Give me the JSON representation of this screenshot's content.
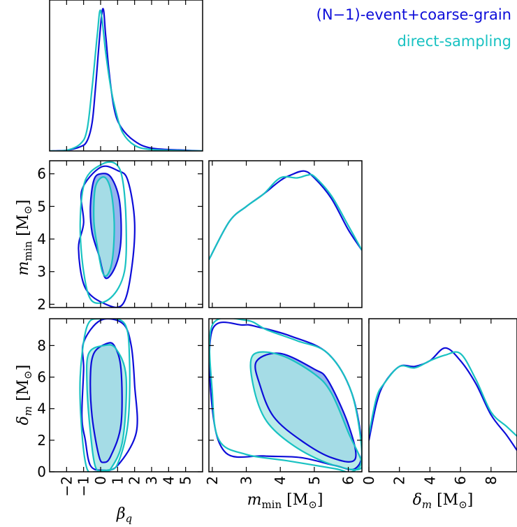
{
  "chart_data": {
    "type": "corner",
    "parameters": [
      {
        "key": "beta_q",
        "label": "β_q",
        "range": [
          -3,
          6
        ],
        "ticks": [
          -2,
          -1,
          0,
          1,
          2,
          3,
          4,
          5
        ],
        "tick_labels": [
          "−2",
          "−1",
          "0",
          "1",
          "2",
          "3",
          "4",
          "5"
        ]
      },
      {
        "key": "m_min",
        "label": "m_min [M_⊙]",
        "range": [
          1.9,
          6.4
        ],
        "ticks": [
          2,
          3,
          4,
          5,
          6
        ],
        "tick_labels": [
          "2",
          "3",
          "4",
          "5",
          "6"
        ]
      },
      {
        "key": "delta_m",
        "label": "δ_m [M_⊙]",
        "range": [
          0,
          9.7
        ],
        "ticks": [
          0,
          2,
          4,
          6,
          8
        ],
        "tick_labels": [
          "0",
          "2",
          "4",
          "6",
          "8"
        ]
      }
    ],
    "legend": {
      "placement": "top-right",
      "entries": [
        {
          "name": "(N−1)-event+coarse-grain",
          "color": "#0d0dd9"
        },
        {
          "name": "direct-sampling",
          "color": "#19c2c2"
        }
      ]
    },
    "series": [
      {
        "name": "(N−1)-event+coarse-grain",
        "color": "#0d0dd9",
        "marginals": {
          "beta_q": {
            "x": [
              -3,
              -2,
              -1.2,
              -0.8,
              -0.5,
              -0.3,
              0.1,
              0.3,
              0.5,
              0.8,
              1.2,
              2.0,
              3.0,
              5.0,
              6.0
            ],
            "y": [
              0,
              0.005,
              0.03,
              0.07,
              0.2,
              0.45,
              1.0,
              0.82,
              0.56,
              0.3,
              0.17,
              0.07,
              0.02,
              0.005,
              0
            ]
          },
          "m_min": {
            "x": [
              1.9,
              2.5,
              3.0,
              3.5,
              4.0,
              4.3,
              4.7,
              5.0,
              5.5,
              6.0,
              6.4
            ],
            "y": [
              0.35,
              0.63,
              0.74,
              0.83,
              0.93,
              0.97,
              1.0,
              0.95,
              0.8,
              0.57,
              0.42
            ]
          },
          "delta_m": {
            "x": [
              0,
              0.5,
              1.0,
              2.0,
              3.0,
              4.0,
              5.0,
              6.0,
              7.0,
              8.0,
              9.0,
              9.7
            ],
            "y": [
              0.22,
              0.48,
              0.62,
              0.74,
              0.74,
              0.78,
              0.87,
              0.78,
              0.62,
              0.4,
              0.26,
              0.15
            ]
          }
        },
        "contours_68": {
          "mmin_vs_betaq": {
            "x": [
              0.0,
              -0.4,
              -0.6,
              -0.5,
              -0.1,
              0.3,
              0.9,
              1.2,
              1.1,
              0.6
            ],
            "y": [
              6.0,
              5.8,
              5.0,
              4.2,
              3.5,
              2.8,
              3.2,
              4.0,
              5.2,
              5.9
            ]
          },
          "deltam_vs_betaq": {
            "x": [
              0.3,
              -0.4,
              -0.6,
              -0.5,
              -0.1,
              0.2,
              0.6,
              1.2,
              1.2,
              0.8
            ],
            "y": [
              8.1,
              7.5,
              6.0,
              3.5,
              1.0,
              0.6,
              1.0,
              3.0,
              6.5,
              8.0
            ]
          },
          "deltam_vs_mmin": {
            "x": [
              3.3,
              4.0,
              5.0,
              5.4,
              6.0,
              6.2,
              5.5,
              4.6,
              3.8,
              3.4
            ],
            "y": [
              7.0,
              7.5,
              6.5,
              5.8,
              3.0,
              0.8,
              0.9,
              2.0,
              3.5,
              5.5
            ]
          }
        },
        "contours_95": {
          "mmin_vs_betaq": {
            "x": [
              0.0,
              -1.1,
              -1.0,
              -1.3,
              -0.9,
              0.3,
              1.3,
              1.8,
              2.0,
              1.6,
              1.0
            ],
            "y": [
              6.2,
              5.5,
              4.5,
              3.7,
              2.5,
              2.0,
              2.0,
              3.0,
              4.5,
              5.8,
              6.1
            ]
          },
          "deltam_vs_betaq": {
            "x": [
              0.0,
              -1.0,
              -1.0,
              -1.1,
              -0.9,
              -0.6,
              0.1,
              1.0,
              2.1,
              2.0,
              1.8,
              1.3
            ],
            "y": [
              9.6,
              8.2,
              6.5,
              3.5,
              2.0,
              0.4,
              0.1,
              0.4,
              2.5,
              5.5,
              8.0,
              9.4
            ]
          },
          "deltam_vs_mmin": {
            "x": [
              2.0,
              2.9,
              3.3,
              4.3,
              5.4,
              6.1,
              6.4,
              6.2,
              5.6,
              4.6,
              3.5,
              2.4,
              2.0
            ],
            "y": [
              9.0,
              9.3,
              9.2,
              8.6,
              7.5,
              5.0,
              1.5,
              0.2,
              0.4,
              0.9,
              1.0,
              1.2,
              4.0
            ]
          }
        }
      },
      {
        "name": "direct-sampling",
        "color": "#19c2c2",
        "marginals": {
          "beta_q": {
            "x": [
              -3,
              -2,
              -1.2,
              -0.8,
              -0.5,
              -0.2,
              0.0,
              0.3,
              0.6,
              0.9,
              1.3,
              2.0,
              3.0,
              5.0,
              6.0
            ],
            "y": [
              0,
              0.005,
              0.05,
              0.15,
              0.45,
              0.82,
              1.0,
              0.7,
              0.45,
              0.28,
              0.13,
              0.04,
              0.01,
              0.002,
              0
            ]
          },
          "m_min": {
            "x": [
              1.9,
              2.5,
              3.0,
              3.5,
              4.0,
              4.5,
              4.8,
              5.0,
              5.5,
              6.0,
              6.4
            ],
            "y": [
              0.35,
              0.63,
              0.74,
              0.83,
              0.95,
              0.95,
              0.97,
              0.96,
              0.82,
              0.6,
              0.42
            ]
          },
          "delta_m": {
            "x": [
              0,
              0.5,
              1.0,
              2.0,
              3.0,
              4.0,
              5.0,
              6.0,
              7.0,
              8.0,
              9.0,
              9.7
            ],
            "y": [
              0.26,
              0.52,
              0.62,
              0.74,
              0.73,
              0.78,
              0.82,
              0.83,
              0.65,
              0.42,
              0.32,
              0.25
            ]
          }
        },
        "contours_68": {
          "mmin_vs_betaq": {
            "x": [
              0.2,
              -0.3,
              -0.4,
              -0.2,
              0.1,
              0.4,
              0.7,
              0.8,
              0.6
            ],
            "y": [
              5.9,
              5.6,
              4.6,
              3.8,
              3.0,
              2.9,
              3.4,
              4.5,
              5.5
            ]
          },
          "deltam_vs_betaq": {
            "x": [
              0.2,
              -0.7,
              -0.8,
              -0.6,
              -0.3,
              0.2,
              0.6,
              1.3,
              1.5,
              0.9
            ],
            "y": [
              8.0,
              7.5,
              5.5,
              2.5,
              0.3,
              0.1,
              0.2,
              2.0,
              6.0,
              7.8
            ]
          },
          "deltam_vs_mmin": {
            "x": [
              3.2,
              4.0,
              5.0,
              5.5,
              6.0,
              6.4,
              5.6,
              4.5,
              3.6,
              3.2
            ],
            "y": [
              7.4,
              7.4,
              6.2,
              5.0,
              2.5,
              0.3,
              0.4,
              1.5,
              3.2,
              5.5
            ]
          }
        },
        "contours_95": {
          "mmin_vs_betaq": {
            "x": [
              0.1,
              -0.9,
              -1.2,
              -1.0,
              -0.5,
              0.6,
              1.4,
              1.5,
              1.3,
              0.9
            ],
            "y": [
              6.3,
              5.8,
              4.5,
              3.0,
              2.1,
              2.2,
              3.0,
              4.5,
              5.8,
              6.3
            ]
          },
          "deltam_vs_betaq": {
            "x": [
              0.0,
              -0.8,
              -1.2,
              -1.1,
              -0.8,
              -0.3,
              0.4,
              1.0,
              1.6,
              1.7,
              1.4
            ],
            "y": [
              9.7,
              9.2,
              6.0,
              2.5,
              0.2,
              0.0,
              0.1,
              0.5,
              3.0,
              7.0,
              9.4
            ]
          },
          "deltam_vs_mmin": {
            "x": [
              2.0,
              3.0,
              3.6,
              4.5,
              5.4,
              6.1,
              6.4,
              6.1,
              5.6,
              4.2,
              3.0,
              2.2,
              2.0
            ],
            "y": [
              9.3,
              9.6,
              9.0,
              8.3,
              7.5,
              5.0,
              1.0,
              0.0,
              0.2,
              0.7,
              1.1,
              2.0,
              5.0
            ]
          }
        }
      }
    ]
  }
}
